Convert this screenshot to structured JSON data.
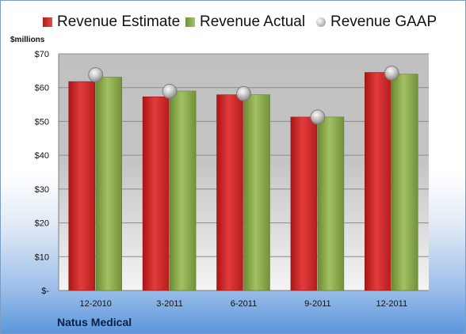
{
  "legend": {
    "estimate": "Revenue Estimate",
    "actual": "Revenue Actual",
    "gaap": "Revenue GAAP"
  },
  "unit_label": "$millions",
  "company": "Natus Medical",
  "colors": {
    "estimate": "#d42a2a",
    "actual": "#8aaa4c",
    "gaap": "#c8c8c8",
    "plot_top": "#c0c0c0",
    "plot_bottom": "#f4f4f4"
  },
  "chart_data": {
    "type": "bar",
    "categories": [
      "12-2010",
      "3-2011",
      "6-2011",
      "9-2011",
      "12-2011"
    ],
    "series": [
      {
        "name": "Revenue Estimate",
        "values": [
          61.8,
          57.3,
          57.9,
          51.3,
          64.5
        ]
      },
      {
        "name": "Revenue Actual",
        "values": [
          63.1,
          59.0,
          57.9,
          51.3,
          64.0
        ]
      },
      {
        "name": "Revenue GAAP",
        "values": [
          63.8,
          58.9,
          58.2,
          51.3,
          64.3
        ],
        "marker": "circle"
      }
    ],
    "ylim": [
      0,
      70
    ],
    "yticks": [
      0,
      10,
      20,
      30,
      40,
      50,
      60,
      70
    ],
    "ytick_labels": [
      "$-",
      "$10",
      "$20",
      "$30",
      "$40",
      "$50",
      "$60",
      "$70"
    ],
    "grid": true,
    "legend_position": "top"
  }
}
